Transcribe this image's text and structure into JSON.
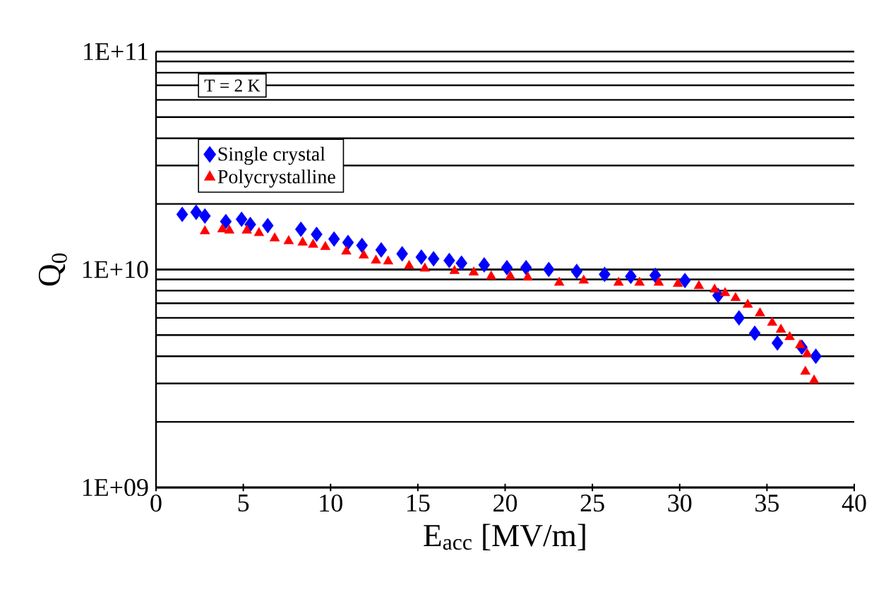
{
  "chart_data": {
    "type": "scatter",
    "xlabel": "E$_{acc}$ [MV/m]",
    "ylabel": "Q$_{0}$",
    "legend_title": "T = 2 K",
    "log": "y",
    "grid": "y",
    "legend": "top left",
    "xlim": [
      0,
      40
    ],
    "xticks": [
      0,
      5,
      10,
      15,
      20,
      25,
      30,
      35,
      40
    ],
    "ylim": [
      1000000000,
      100000000000
    ],
    "yticks": [
      {
        "value": 1000000000,
        "label": "1E+09"
      },
      {
        "value": 10000000000,
        "label": "1E+10"
      },
      {
        "value": 100000000000,
        "label": "1E+11"
      }
    ],
    "series": [
      {
        "name": "Single crystal",
        "color": "#0000ff",
        "marker": "diamond",
        "x": [
          1.5,
          2.3,
          2.8,
          4.0,
          4.9,
          5.4,
          6.4,
          8.3,
          9.2,
          10.2,
          11.0,
          11.8,
          12.9,
          14.1,
          15.2,
          15.9,
          16.8,
          17.5,
          18.8,
          20.1,
          21.2,
          22.5,
          24.1,
          25.7,
          27.2,
          28.6,
          30.3,
          32.2,
          33.4,
          34.3,
          35.6,
          37.0,
          37.8
        ],
        "values": [
          17900000000.0,
          18300000000.0,
          17600000000.0,
          16600000000.0,
          17000000000.0,
          16100000000.0,
          15900000000.0,
          15300000000.0,
          14500000000.0,
          13800000000.0,
          13300000000.0,
          12900000000.0,
          12300000000.0,
          11800000000.0,
          11400000000.0,
          11200000000.0,
          11000000000.0,
          10700000000.0,
          10500000000.0,
          10200000000.0,
          10200000000.0,
          10000000000.0,
          9800000000.0,
          9500000000.0,
          9300000000.0,
          9400000000.0,
          8900000000.0,
          7600000000.0,
          6000000000.0,
          5100000000.0,
          4600000000.0,
          4400000000.0,
          4000000000.0
        ]
      },
      {
        "name": "Polycrystalline",
        "color": "#ff0000",
        "marker": "triangle",
        "x": [
          2.8,
          3.8,
          4.2,
          5.2,
          5.9,
          6.8,
          7.6,
          8.4,
          9.0,
          9.7,
          10.9,
          11.9,
          12.6,
          13.3,
          14.5,
          15.4,
          17.1,
          18.2,
          19.2,
          20.3,
          21.3,
          23.1,
          24.5,
          26.5,
          27.7,
          28.8,
          29.9,
          31.1,
          32.0,
          32.6,
          33.2,
          33.9,
          34.6,
          35.3,
          35.8,
          36.3,
          36.9,
          37.3,
          37.2,
          37.7
        ],
        "values": [
          15000000000.0,
          15300000000.0,
          15100000000.0,
          15100000000.0,
          14700000000.0,
          13900000000.0,
          13500000000.0,
          13300000000.0,
          13000000000.0,
          12700000000.0,
          12100000000.0,
          11600000000.0,
          11000000000.0,
          10900000000.0,
          10400000000.0,
          10100000000.0,
          9850000000.0,
          9700000000.0,
          9300000000.0,
          9300000000.0,
          9200000000.0,
          8700000000.0,
          8900000000.0,
          8700000000.0,
          8700000000.0,
          8700000000.0,
          8600000000.0,
          8400000000.0,
          8100000000.0,
          7800000000.0,
          7400000000.0,
          6900000000.0,
          6300000000.0,
          5700000000.0,
          5300000000.0,
          4900000000.0,
          4500000000.0,
          4100000000.0,
          3400000000.0,
          3100000000.0
        ]
      }
    ]
  }
}
